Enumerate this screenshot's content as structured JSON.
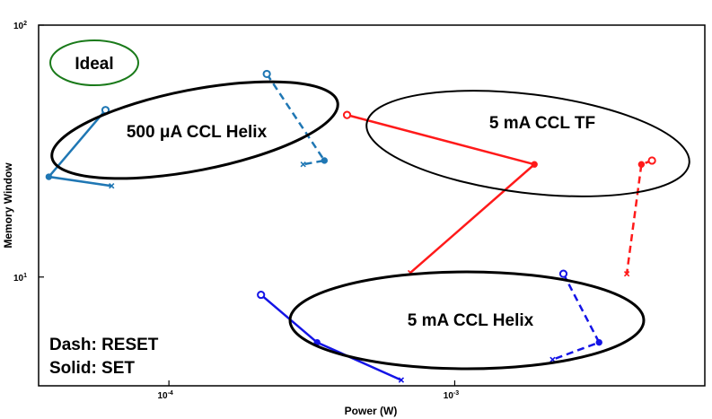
{
  "chart_data": {
    "type": "line",
    "xscale": "log",
    "yscale": "log",
    "xlabel": "Power (W)",
    "ylabel": "Memory Window",
    "xlim": [
      3.5e-05,
      0.0075
    ],
    "ylim": [
      3.7,
      100
    ],
    "x_ticks": [
      {
        "value": 0.0001,
        "base": "10",
        "exp": "-4"
      },
      {
        "value": 0.001,
        "base": "10",
        "exp": "-3"
      }
    ],
    "y_ticks": [
      {
        "value": 10,
        "base": "10",
        "exp": "1"
      },
      {
        "value": 100,
        "base": "10",
        "exp": "2"
      }
    ],
    "grid": false,
    "colors": {
      "cyan": "#1f77b4",
      "red": "#ff1a1a",
      "blue": "#1414e6",
      "ideal": "#1a7a1a"
    },
    "series": [
      {
        "color": "#1f77b4",
        "style": "solid",
        "points": [
          [
            6e-05,
            46
          ],
          [
            3.8e-05,
            25
          ],
          [
            6.3e-05,
            23
          ]
        ]
      },
      {
        "color": "#1f77b4",
        "style": "dashed",
        "points": [
          [
            0.00022,
            64
          ],
          [
            0.00035,
            29
          ],
          [
            0.000295,
            28
          ]
        ]
      },
      {
        "color": "#ff1a1a",
        "style": "solid",
        "points": [
          [
            0.00042,
            44
          ],
          [
            0.0019,
            28
          ],
          [
            0.0007,
            10.4
          ]
        ]
      },
      {
        "color": "#ff1a1a",
        "style": "dashed",
        "points": [
          [
            0.0049,
            29
          ],
          [
            0.0045,
            28
          ],
          [
            0.004,
            10.3
          ]
        ]
      },
      {
        "color": "#1414e6",
        "style": "solid",
        "points": [
          [
            0.00021,
            8.5
          ],
          [
            0.00033,
            5.5
          ],
          [
            0.00065,
            3.9
          ]
        ]
      },
      {
        "color": "#1414e6",
        "style": "dashed",
        "points": [
          [
            0.0024,
            10.3
          ],
          [
            0.0032,
            5.5
          ],
          [
            0.0022,
            4.7
          ]
        ]
      }
    ],
    "annotations": [
      {
        "text": "Ideal",
        "ellipse_color": "#1a7a1a"
      },
      {
        "text": "500 μA CCL Helix",
        "ellipse_color": "#000000"
      },
      {
        "text": "5 mA CCL TF",
        "ellipse_color": "#000000"
      },
      {
        "text": "5 mA CCL Helix",
        "ellipse_color": "#000000"
      }
    ],
    "legend_notes": [
      "Dash: RESET",
      "Solid: SET"
    ]
  }
}
